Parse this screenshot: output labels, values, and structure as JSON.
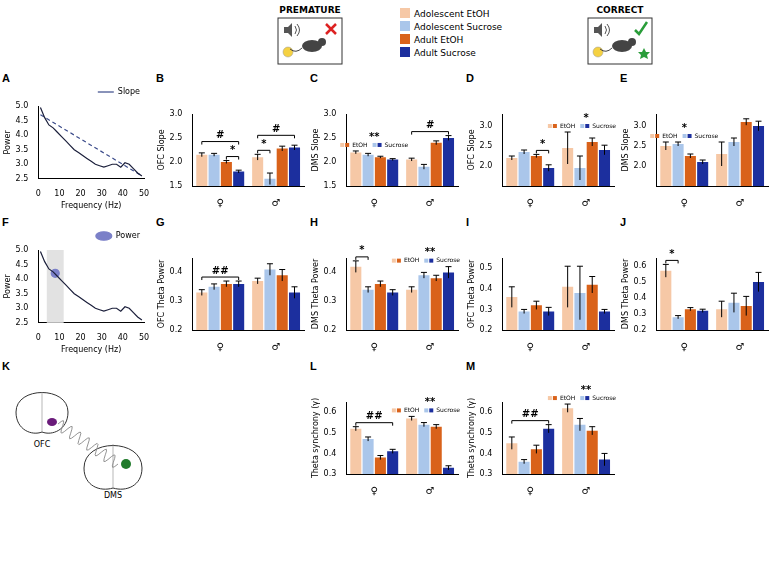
{
  "task_panels": [
    {
      "title": "PREMATURE"
    },
    {
      "title": "CORRECT"
    }
  ],
  "diagram": {
    "letter": "K",
    "labels": [
      "OFC",
      "DMS"
    ]
  },
  "chart_data": [
    {
      "letter": "A",
      "type": "line",
      "x_label": "Frequency (Hz)",
      "y_label": "Power",
      "xlim": [
        0,
        50
      ],
      "xticks": [
        0,
        10,
        20,
        30,
        40,
        50
      ],
      "ylim": [
        2.5,
        5.0
      ],
      "yticks": [
        2.5,
        {
          "value": 3,
          "label": "3.0"
        },
        3.5,
        {
          "value": 4,
          "label": "4.0"
        },
        4.5,
        {
          "value": 5,
          "label": "5.0"
        }
      ],
      "grid": false,
      "legend": "top-right",
      "series": [
        {
          "color": "#1b1f3b",
          "line_style": "solid",
          "x": [
            1,
            3,
            5,
            7,
            9,
            11,
            13,
            15,
            17,
            19,
            21,
            23,
            25,
            27,
            29,
            31,
            33,
            35,
            37,
            39,
            41,
            43,
            45,
            47,
            49
          ],
          "values": [
            4.95,
            4.6,
            4.35,
            4.25,
            4.1,
            3.95,
            3.8,
            3.65,
            3.5,
            3.4,
            3.3,
            3.2,
            3.1,
            3.0,
            2.95,
            2.9,
            2.95,
            3.0,
            3.0,
            2.9,
            3.05,
            3.0,
            2.85,
            2.7,
            2.6
          ]
        },
        {
          "name": "Slope",
          "color": "#3a4a8a",
          "line_style": "dashed",
          "x": [
            1,
            49
          ],
          "values": [
            4.7,
            2.6
          ]
        }
      ]
    },
    {
      "letter": "B",
      "type": "bar",
      "y_label": "OFC Slope",
      "categories": [
        "♀",
        "♂"
      ],
      "ylim": [
        1.5,
        3.0
      ],
      "yticks": [
        1.5,
        {
          "value": 2,
          "label": "2.0"
        },
        2.5,
        {
          "value": 3,
          "label": "3.0"
        }
      ],
      "grid": false,
      "series": [
        {
          "name": "Adolescent EtOH",
          "color": "#f6c8a6",
          "values": [
            2.15,
            2.1
          ],
          "errors": [
            0.04,
            0.06
          ]
        },
        {
          "name": "Adolescent Sucrose",
          "color": "#aac6ea",
          "values": [
            2.15,
            1.65
          ],
          "errors": [
            0.03,
            0.12
          ]
        },
        {
          "name": "Adult EtOH",
          "color": "#d9621a",
          "values": [
            2.0,
            2.28
          ],
          "errors": [
            0.03,
            0.05
          ]
        },
        {
          "name": "Adult Sucrose",
          "color": "#1c2f9e",
          "values": [
            1.8,
            2.3
          ],
          "errors": [
            0.03,
            0.05
          ]
        }
      ],
      "annotations": [
        {
          "text": "#",
          "category": "♀"
        },
        {
          "text": "*",
          "category": "♀",
          "between": [
            "Adult EtOH",
            "Adult Sucrose"
          ]
        },
        {
          "text": "*",
          "category": "♂",
          "between": [
            "Adolescent EtOH",
            "Adolescent Sucrose"
          ]
        },
        {
          "text": "#",
          "category": "♂"
        }
      ]
    },
    {
      "letter": "C",
      "type": "bar",
      "y_label": "DMS Slope",
      "categories": [
        "♀",
        "♂"
      ],
      "ylim": [
        1.5,
        3.0
      ],
      "yticks": [
        1.5,
        {
          "value": 2,
          "label": "2.0"
        },
        2.5,
        {
          "value": 3,
          "label": "3.0"
        }
      ],
      "grid": false,
      "series": [
        {
          "name": "Adolescent EtOH",
          "color": "#f6c8a6",
          "values": [
            2.2,
            2.05
          ],
          "errors": [
            0.03,
            0.03
          ]
        },
        {
          "name": "Adolescent Sucrose",
          "color": "#aac6ea",
          "values": [
            2.15,
            1.9
          ],
          "errors": [
            0.03,
            0.05
          ]
        },
        {
          "name": "Adult EtOH",
          "color": "#d9621a",
          "values": [
            2.1,
            2.4
          ],
          "errors": [
            0.02,
            0.04
          ]
        },
        {
          "name": "Adult Sucrose",
          "color": "#1c2f9e",
          "values": [
            2.05,
            2.5
          ],
          "errors": [
            0.02,
            0.05
          ]
        }
      ],
      "annotations": [
        {
          "text": "**",
          "category": "♀",
          "key": [
            "EtOH",
            "Sucrose"
          ]
        },
        {
          "text": "#",
          "category": "♂"
        }
      ]
    },
    {
      "letter": "D",
      "type": "bar",
      "y_label": "OFC Slope",
      "categories": [
        "♀",
        "♂"
      ],
      "ylim": [
        1.5,
        3.3
      ],
      "yticks": [
        {
          "value": 2,
          "label": "2.0"
        },
        2.5,
        {
          "value": 3,
          "label": "3.0"
        }
      ],
      "grid": false,
      "series": [
        {
          "name": "Adolescent EtOH",
          "color": "#f6c8a6",
          "values": [
            2.2,
            2.45
          ],
          "errors": [
            0.05,
            0.4
          ]
        },
        {
          "name": "Adolescent Sucrose",
          "color": "#aac6ea",
          "values": [
            2.35,
            1.95
          ],
          "errors": [
            0.05,
            0.3
          ]
        },
        {
          "name": "Adult EtOH",
          "color": "#d9621a",
          "values": [
            2.25,
            2.6
          ],
          "errors": [
            0.04,
            0.1
          ]
        },
        {
          "name": "Adult Sucrose",
          "color": "#1c2f9e",
          "values": [
            1.95,
            2.4
          ],
          "errors": [
            0.08,
            0.12
          ]
        }
      ],
      "annotations": [
        {
          "text": "*",
          "category": "♀",
          "between": [
            "Adult EtOH",
            "Adult Sucrose"
          ]
        },
        {
          "text": "*",
          "category": "♂",
          "key": [
            "EtOH",
            "Sucrose"
          ]
        }
      ]
    },
    {
      "letter": "E",
      "type": "bar",
      "y_label": "DMS Slope",
      "categories": [
        "♀",
        "♂"
      ],
      "ylim": [
        1.5,
        3.3
      ],
      "yticks": [
        {
          "value": 2,
          "label": "2.0"
        },
        2.5,
        {
          "value": 3,
          "label": "3.0"
        }
      ],
      "grid": false,
      "series": [
        {
          "name": "Adolescent EtOH",
          "color": "#f6c8a6",
          "values": [
            2.5,
            2.3
          ],
          "errors": [
            0.1,
            0.3
          ]
        },
        {
          "name": "Adolescent Sucrose",
          "color": "#aac6ea",
          "values": [
            2.55,
            2.6
          ],
          "errors": [
            0.05,
            0.1
          ]
        },
        {
          "name": "Adult EtOH",
          "color": "#d9621a",
          "values": [
            2.25,
            3.1
          ],
          "errors": [
            0.05,
            0.08
          ]
        },
        {
          "name": "Adult Sucrose",
          "color": "#1c2f9e",
          "values": [
            2.1,
            3.0
          ],
          "errors": [
            0.05,
            0.12
          ]
        }
      ],
      "annotations": [
        {
          "text": "*",
          "category": "♀",
          "key": [
            "EtOH",
            "Sucrose"
          ]
        }
      ]
    },
    {
      "letter": "F",
      "type": "line",
      "x_label": "Frequency (Hz)",
      "y_label": "Power",
      "xlim": [
        0,
        50
      ],
      "xticks": [
        0,
        10,
        20,
        30,
        40,
        50
      ],
      "ylim": [
        2.5,
        5.0
      ],
      "yticks": [
        2.5,
        {
          "value": 3,
          "label": "3.0"
        },
        3.5,
        {
          "value": 4,
          "label": "4.0"
        },
        4.5,
        {
          "value": 5,
          "label": "5.0"
        }
      ],
      "grid": false,
      "legend": "top-right",
      "theta_band": [
        4,
        12
      ],
      "series": [
        {
          "color": "#1b1f3b",
          "line_style": "solid",
          "x": [
            1,
            3,
            5,
            7,
            9,
            11,
            13,
            15,
            17,
            19,
            21,
            23,
            25,
            27,
            29,
            31,
            33,
            35,
            37,
            39,
            41,
            43,
            45,
            47,
            49
          ],
          "values": [
            4.95,
            4.6,
            4.35,
            4.25,
            4.1,
            3.95,
            3.8,
            3.65,
            3.5,
            3.4,
            3.3,
            3.2,
            3.1,
            3.0,
            2.95,
            2.9,
            2.95,
            3.0,
            3.0,
            2.9,
            3.05,
            3.0,
            2.85,
            2.7,
            2.6
          ]
        },
        {
          "name": "Power",
          "type": "scatter",
          "marker": "circle",
          "color": "#7b80c8",
          "x": [
            8
          ],
          "values": [
            4.2
          ]
        }
      ]
    },
    {
      "letter": "G",
      "type": "bar",
      "y_label": "OFC Theta Power",
      "categories": [
        "♀",
        "♂"
      ],
      "ylim": [
        0.2,
        0.45
      ],
      "yticks": [
        0.2,
        0.3,
        0.4
      ],
      "grid": false,
      "series": [
        {
          "name": "Adolescent EtOH",
          "color": "#f6c8a6",
          "values": [
            0.33,
            0.37
          ],
          "errors": [
            0.01,
            0.01
          ]
        },
        {
          "name": "Adolescent Sucrose",
          "color": "#aac6ea",
          "values": [
            0.35,
            0.41
          ],
          "errors": [
            0.01,
            0.02
          ]
        },
        {
          "name": "Adult EtOH",
          "color": "#d9621a",
          "values": [
            0.36,
            0.39
          ],
          "errors": [
            0.01,
            0.02
          ]
        },
        {
          "name": "Adult Sucrose",
          "color": "#1c2f9e",
          "values": [
            0.36,
            0.33
          ],
          "errors": [
            0.01,
            0.02
          ]
        }
      ],
      "annotations": [
        {
          "text": "##",
          "category": "♀"
        }
      ]
    },
    {
      "letter": "H",
      "type": "bar",
      "y_label": "DMS Theta Power",
      "categories": [
        "♀",
        "♂"
      ],
      "ylim": [
        0.2,
        0.45
      ],
      "yticks": [
        0.2,
        0.3,
        0.4
      ],
      "grid": false,
      "series": [
        {
          "name": "Adolescent EtOH",
          "color": "#f6c8a6",
          "values": [
            0.42,
            0.34
          ],
          "errors": [
            0.02,
            0.01
          ]
        },
        {
          "name": "Adolescent Sucrose",
          "color": "#aac6ea",
          "values": [
            0.34,
            0.39
          ],
          "errors": [
            0.01,
            0.01
          ]
        },
        {
          "name": "Adult EtOH",
          "color": "#d9621a",
          "values": [
            0.36,
            0.38
          ],
          "errors": [
            0.01,
            0.01
          ]
        },
        {
          "name": "Adult Sucrose",
          "color": "#1c2f9e",
          "values": [
            0.33,
            0.4
          ],
          "errors": [
            0.01,
            0.02
          ]
        }
      ],
      "annotations": [
        {
          "text": "*",
          "category": "♀",
          "between": [
            "Adolescent EtOH",
            "Adolescent Sucrose"
          ]
        },
        {
          "text": "**",
          "category": "♂",
          "key": [
            "EtOH",
            "Sucrose"
          ]
        }
      ]
    },
    {
      "letter": "I",
      "type": "bar",
      "y_label": "OFC Theta Power",
      "categories": [
        "♀",
        "♂"
      ],
      "ylim": [
        0.2,
        0.55
      ],
      "yticks": [
        0.2,
        0.3,
        0.4,
        0.5
      ],
      "grid": false,
      "series": [
        {
          "name": "Adolescent EtOH",
          "color": "#f6c8a6",
          "values": [
            0.36,
            0.41
          ],
          "errors": [
            0.05,
            0.1
          ]
        },
        {
          "name": "Adolescent Sucrose",
          "color": "#aac6ea",
          "values": [
            0.29,
            0.38
          ],
          "errors": [
            0.01,
            0.13
          ]
        },
        {
          "name": "Adult EtOH",
          "color": "#d9621a",
          "values": [
            0.32,
            0.42
          ],
          "errors": [
            0.02,
            0.04
          ]
        },
        {
          "name": "Adult Sucrose",
          "color": "#1c2f9e",
          "values": [
            0.29,
            0.29
          ],
          "errors": [
            0.02,
            0.01
          ]
        }
      ],
      "annotations": []
    },
    {
      "letter": "J",
      "type": "bar",
      "y_label": "DMS Theta Power",
      "categories": [
        "♀",
        "♂"
      ],
      "ylim": [
        0.2,
        0.65
      ],
      "yticks": [
        0.2,
        0.3,
        0.4,
        0.5,
        0.6
      ],
      "grid": false,
      "series": [
        {
          "name": "Adolescent EtOH",
          "color": "#f6c8a6",
          "values": [
            0.57,
            0.33
          ],
          "errors": [
            0.04,
            0.05
          ]
        },
        {
          "name": "Adolescent Sucrose",
          "color": "#aac6ea",
          "values": [
            0.28,
            0.37
          ],
          "errors": [
            0.01,
            0.06
          ]
        },
        {
          "name": "Adult EtOH",
          "color": "#d9621a",
          "values": [
            0.33,
            0.35
          ],
          "errors": [
            0.01,
            0.06
          ]
        },
        {
          "name": "Adult Sucrose",
          "color": "#1c2f9e",
          "values": [
            0.32,
            0.5
          ],
          "errors": [
            0.01,
            0.06
          ]
        }
      ],
      "annotations": [
        {
          "text": "*",
          "category": "♀",
          "between": [
            "Adolescent EtOH",
            "Adolescent Sucrose"
          ]
        }
      ]
    },
    {
      "letter": "L",
      "type": "bar",
      "y_label": "Theta synchrony (γ)",
      "categories": [
        "♀",
        "♂"
      ],
      "ylim": [
        0.3,
        0.65
      ],
      "yticks": [
        0.3,
        0.4,
        0.5,
        0.6
      ],
      "grid": false,
      "series": [
        {
          "name": "Adolescent EtOH",
          "color": "#f6c8a6",
          "values": [
            0.52,
            0.57
          ],
          "errors": [
            0.01,
            0.01
          ]
        },
        {
          "name": "Adolescent Sucrose",
          "color": "#aac6ea",
          "values": [
            0.47,
            0.54
          ],
          "errors": [
            0.01,
            0.01
          ]
        },
        {
          "name": "Adult EtOH",
          "color": "#d9621a",
          "values": [
            0.38,
            0.53
          ],
          "errors": [
            0.01,
            0.01
          ]
        },
        {
          "name": "Adult Sucrose",
          "color": "#1c2f9e",
          "values": [
            0.41,
            0.33
          ],
          "errors": [
            0.01,
            0.01
          ]
        }
      ],
      "annotations": [
        {
          "text": "##",
          "category": "♀"
        },
        {
          "text": "**",
          "category": "♂",
          "key": [
            "EtOH",
            "Sucrose"
          ]
        }
      ]
    },
    {
      "letter": "M",
      "type": "bar",
      "y_label": "Theta synchrony (γ)",
      "categories": [
        "♀",
        "♂"
      ],
      "ylim": [
        0.3,
        0.65
      ],
      "yticks": [
        0.3,
        0.4,
        0.5,
        0.6
      ],
      "grid": false,
      "series": [
        {
          "name": "Adolescent EtOH",
          "color": "#f6c8a6",
          "values": [
            0.45,
            0.62
          ],
          "errors": [
            0.03,
            0.02
          ]
        },
        {
          "name": "Adolescent Sucrose",
          "color": "#aac6ea",
          "values": [
            0.36,
            0.54
          ],
          "errors": [
            0.01,
            0.03
          ]
        },
        {
          "name": "Adult EtOH",
          "color": "#d9621a",
          "values": [
            0.42,
            0.51
          ],
          "errors": [
            0.02,
            0.02
          ]
        },
        {
          "name": "Adult Sucrose",
          "color": "#1c2f9e",
          "values": [
            0.52,
            0.37
          ],
          "errors": [
            0.02,
            0.03
          ]
        }
      ],
      "annotations": [
        {
          "text": "##",
          "category": "♀"
        },
        {
          "text": "**",
          "category": "♂",
          "key": [
            "EtOH",
            "Sucrose"
          ]
        }
      ]
    }
  ]
}
